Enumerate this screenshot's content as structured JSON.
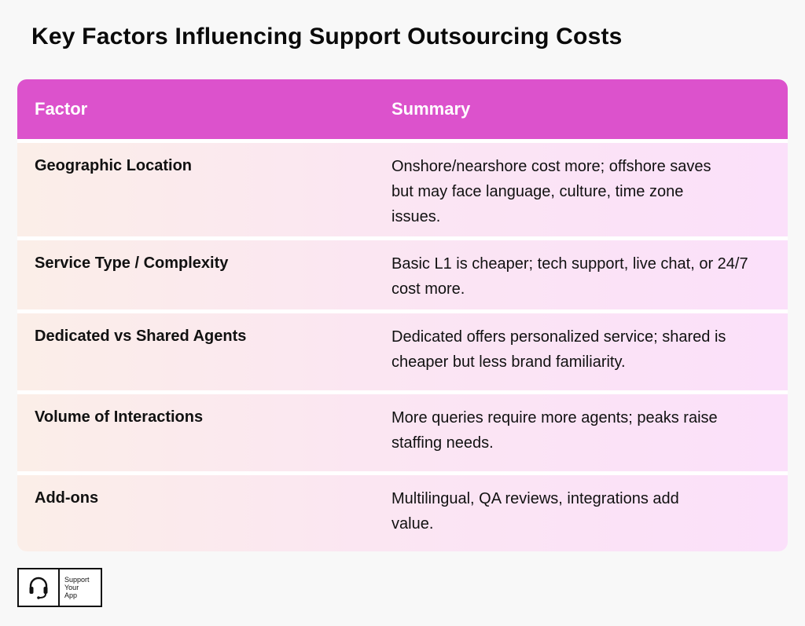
{
  "title": "Key Factors Influencing Support Outsourcing Costs",
  "colors": {
    "header_bg": "#dc52cc",
    "row_left": "#fbeee8",
    "row_right": "#fbe0fa",
    "page_bg": "#f8f8f8"
  },
  "table": {
    "headers": {
      "factor": "Factor",
      "summary": "Summary"
    },
    "rows": [
      {
        "factor": "Geographic Location",
        "summary": "Onshore/nearshore cost more; offshore saves but may face language, culture, time zone issues."
      },
      {
        "factor": "Service Type / Complexity",
        "summary": "Basic L1 is cheaper; tech support, live chat, or 24/7 cost more."
      },
      {
        "factor": "Dedicated vs Shared Agents",
        "summary": "Dedicated offers personalized service; shared is cheaper but less brand familiarity."
      },
      {
        "factor": "Volume of Interactions",
        "summary": "More queries require more agents; peaks raise staffing needs."
      },
      {
        "factor": "Add-ons",
        "summary": "Multilingual, QA reviews, integrations add value."
      }
    ]
  },
  "logo": {
    "icon": "headset-icon",
    "line1": "Support",
    "line2": "Your",
    "line3": "App"
  }
}
